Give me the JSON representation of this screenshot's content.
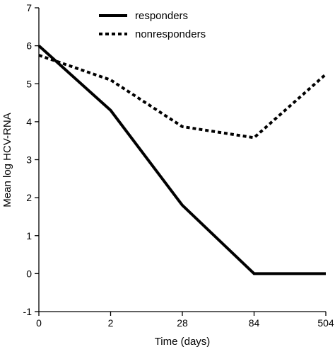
{
  "chart_data": {
    "type": "line",
    "x": [
      "0",
      "2",
      "28",
      "84",
      "504"
    ],
    "series": [
      {
        "name": "responders",
        "values": [
          6.0,
          4.3,
          1.8,
          0.0,
          0.0
        ],
        "style": "solid",
        "color": "#000000"
      },
      {
        "name": "nonresponders",
        "values": [
          5.75,
          5.1,
          3.87,
          3.58,
          5.25
        ],
        "style": "dotted",
        "color": "#000000"
      }
    ],
    "xlabel": "Time (days)",
    "ylabel": "Mean log HCV-RNA",
    "ylim": [
      -1,
      7
    ],
    "yticks": [
      "-1",
      "0",
      "1",
      "2",
      "3",
      "4",
      "5",
      "6",
      "7"
    ],
    "grid": false,
    "legend": "top-center"
  }
}
